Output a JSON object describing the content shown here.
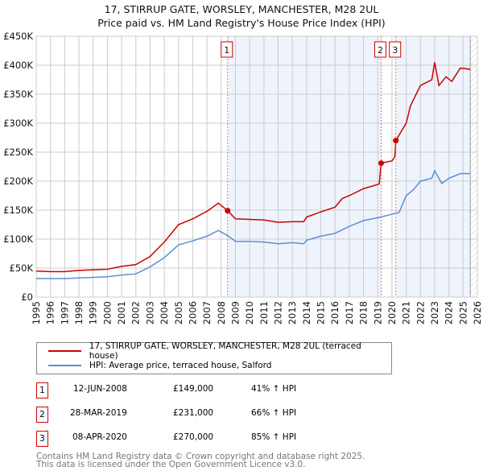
{
  "chart_data": {
    "type": "line",
    "title": "17, STIRRUP GATE, WORSLEY, MANCHESTER, M28 2UL",
    "subtitle": "Price paid vs. HM Land Registry's House Price Index (HPI)",
    "xlim": [
      1995,
      2026
    ],
    "ylim": [
      0,
      450000
    ],
    "yticks": [
      0,
      50000,
      100000,
      150000,
      200000,
      250000,
      300000,
      350000,
      400000,
      450000
    ],
    "ytick_labels": [
      "£0",
      "£50K",
      "£100K",
      "£150K",
      "£200K",
      "£250K",
      "£300K",
      "£350K",
      "£400K",
      "£450K"
    ],
    "xticks": [
      "1995",
      "1996",
      "1997",
      "1998",
      "1999",
      "2000",
      "2001",
      "2002",
      "2003",
      "2004",
      "2005",
      "2006",
      "2007",
      "2008",
      "2009",
      "2010",
      "2011",
      "2012",
      "2013",
      "2014",
      "2015",
      "2016",
      "2017",
      "2018",
      "2019",
      "2020",
      "2021",
      "2022",
      "2023",
      "2024",
      "2025",
      "2026"
    ],
    "grid": true,
    "series": [
      {
        "name": "17, STIRRUP GATE, WORSLEY, MANCHESTER, M28 2UL (terraced house)",
        "color": "#cc0000",
        "x": [
          1995,
          1996,
          1997,
          1998,
          1999,
          2000,
          2001,
          2002,
          2003,
          2004,
          2005,
          2006,
          2007,
          2007.8,
          2008.45,
          2009,
          2010,
          2011,
          2012,
          2013,
          2013.8,
          2014,
          2015,
          2016,
          2016.5,
          2017,
          2018,
          2019.1,
          2019.24,
          2020,
          2020.2,
          2020.27,
          2021,
          2021.3,
          2022,
          2022.8,
          2023.0,
          2023.3,
          2023.8,
          2024.2,
          2024.8,
          2025.5
        ],
        "y": [
          45000,
          44000,
          44000,
          46000,
          47000,
          48000,
          53000,
          56000,
          70000,
          95000,
          125000,
          135000,
          148000,
          162000,
          149000,
          135000,
          134000,
          133000,
          129000,
          130000,
          130000,
          138000,
          147000,
          155000,
          170000,
          175000,
          187000,
          195000,
          231000,
          235000,
          242000,
          270000,
          300000,
          330000,
          365000,
          375000,
          405000,
          365000,
          380000,
          372000,
          395000,
          393000
        ]
      },
      {
        "name": "HPI: Average price, terraced house, Salford",
        "color": "#5b8fd0",
        "x": [
          1995,
          1997,
          1999,
          2000,
          2001,
          2002,
          2003,
          2004,
          2005,
          2006,
          2007,
          2007.8,
          2008.45,
          2009,
          2010,
          2011,
          2012,
          2013,
          2013.8,
          2014,
          2015,
          2016,
          2017,
          2018,
          2019.2,
          2020,
          2020.5,
          2021,
          2021.5,
          2022,
          2022.8,
          2023.0,
          2023.5,
          2024,
          2024.8,
          2025.5
        ],
        "y": [
          32000,
          32000,
          34000,
          35000,
          38000,
          40000,
          52000,
          68000,
          90000,
          97000,
          105000,
          115000,
          106000,
          96000,
          96000,
          95000,
          92000,
          94000,
          92000,
          98000,
          105000,
          110000,
          122000,
          132000,
          138000,
          143000,
          146000,
          175000,
          185000,
          200000,
          205000,
          218000,
          196000,
          205000,
          213000,
          213000
        ]
      }
    ],
    "sales": [
      {
        "id": "1",
        "x": 2008.45,
        "price": 149000,
        "date": "12-JUN-2008",
        "price_label": "£149,000",
        "hpi": "41% ↑ HPI"
      },
      {
        "id": "2",
        "x": 2019.24,
        "price": 231000,
        "date": "28-MAR-2019",
        "price_label": "£231,000",
        "hpi": "66% ↑ HPI"
      },
      {
        "id": "3",
        "x": 2020.27,
        "price": 270000,
        "date": "08-APR-2020",
        "price_label": "£270,000",
        "hpi": "85% ↑ HPI"
      }
    ],
    "forecast_start": 2025.5
  },
  "footer": {
    "line1": "Contains HM Land Registry data © Crown copyright and database right 2025.",
    "line2": "This data is licensed under the Open Government Licence v3.0."
  }
}
